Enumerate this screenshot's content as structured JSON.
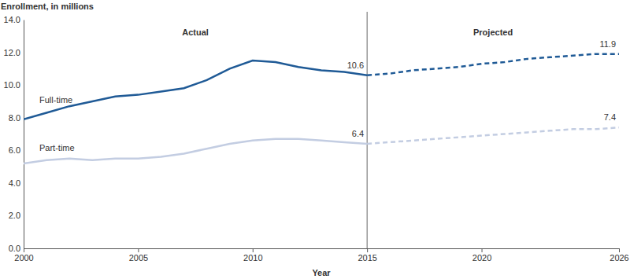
{
  "chart_data": {
    "type": "line",
    "x_label": "Year",
    "y_label": "Enrollment, in millions",
    "x": [
      2000,
      2001,
      2002,
      2003,
      2004,
      2005,
      2006,
      2007,
      2008,
      2009,
      2010,
      2011,
      2012,
      2013,
      2014,
      2015,
      2016,
      2017,
      2018,
      2019,
      2020,
      2021,
      2022,
      2023,
      2024,
      2025,
      2026
    ],
    "xlim": [
      2000,
      2026
    ],
    "xticks": [
      2000,
      2005,
      2010,
      2015,
      2020,
      2026
    ],
    "ylim": [
      0,
      14
    ],
    "yticks": [
      {
        "value": 0,
        "label": "0.0"
      },
      {
        "value": 2,
        "label": "2.0"
      },
      {
        "value": 4,
        "label": "4.0"
      },
      {
        "value": 6,
        "label": "6.0"
      },
      {
        "value": 8,
        "label": "8.0"
      },
      {
        "value": 10,
        "label": "10.0"
      },
      {
        "value": 12,
        "label": "12.0"
      },
      {
        "value": 14,
        "label": "14.0"
      }
    ],
    "grid": false,
    "projection_start": 2015,
    "region_labels": [
      "Actual",
      "Projected"
    ],
    "series": [
      {
        "name": "Full-time",
        "color": "#1f5a96",
        "line_style": "solid",
        "values": [
          7.9,
          8.3,
          8.7,
          9.0,
          9.3,
          9.4,
          9.6,
          9.8,
          10.3,
          11.0,
          11.5,
          11.4,
          11.1,
          10.9,
          10.8,
          10.6,
          null,
          null,
          null,
          null,
          null,
          null,
          null,
          null,
          null,
          null,
          null
        ]
      },
      {
        "color": "#1f5a96",
        "line_style": "dashed",
        "values": [
          null,
          null,
          null,
          null,
          null,
          null,
          null,
          null,
          null,
          null,
          null,
          null,
          null,
          null,
          null,
          10.6,
          10.7,
          10.9,
          11.0,
          11.1,
          11.3,
          11.4,
          11.6,
          11.7,
          11.8,
          11.9,
          11.9
        ]
      },
      {
        "name": "Part-time",
        "color": "#c3cde2",
        "line_style": "solid",
        "values": [
          5.2,
          5.4,
          5.5,
          5.4,
          5.5,
          5.5,
          5.6,
          5.8,
          6.1,
          6.4,
          6.6,
          6.7,
          6.7,
          6.6,
          6.5,
          6.4,
          null,
          null,
          null,
          null,
          null,
          null,
          null,
          null,
          null,
          null,
          null
        ]
      },
      {
        "color": "#c3cde2",
        "line_style": "dashed",
        "values": [
          null,
          null,
          null,
          null,
          null,
          null,
          null,
          null,
          null,
          null,
          null,
          null,
          null,
          null,
          null,
          6.4,
          6.5,
          6.6,
          6.7,
          6.8,
          6.9,
          7.0,
          7.1,
          7.2,
          7.3,
          7.3,
          7.4
        ]
      }
    ],
    "annotations": [
      {
        "text": "10.6",
        "x": 2015,
        "y": 10.6
      },
      {
        "text": "6.4",
        "x": 2015,
        "y": 6.4
      },
      {
        "text": "11.9",
        "x": 2026,
        "y": 11.9
      },
      {
        "text": "7.4",
        "x": 2026,
        "y": 7.4
      }
    ]
  }
}
